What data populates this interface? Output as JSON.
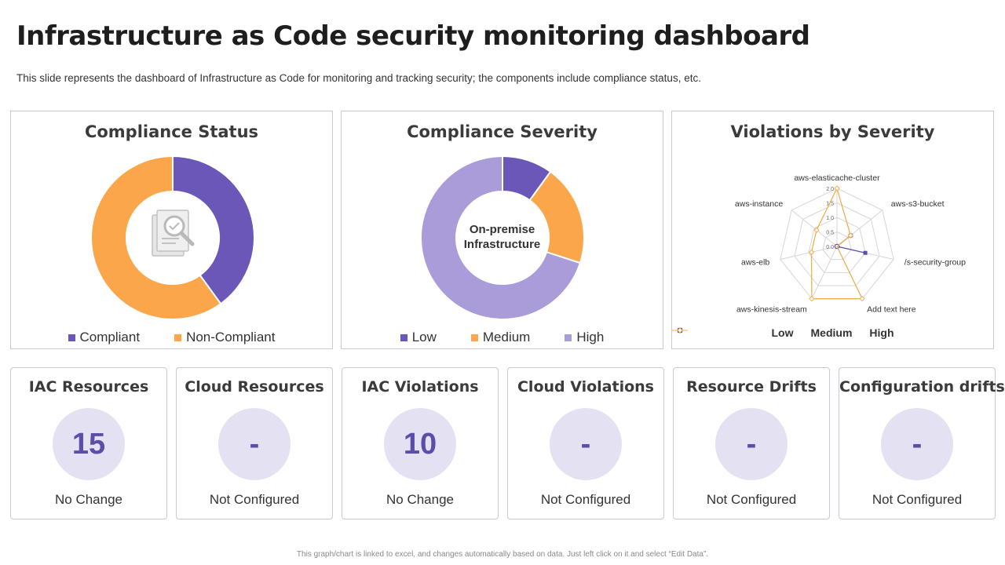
{
  "page": {
    "title": "Infrastructure as Code security monitoring dashboard",
    "subtitle": "This slide represents the dashboard of Infrastructure as Code for monitoring and tracking security; the components include compliance status, etc.",
    "footnote": "This graph/chart is linked to excel, and changes automatically based on data. Just left click on it and select “Edit Data”."
  },
  "chart_data": [
    {
      "type": "pie",
      "title": "Compliance Status",
      "categories": [
        "Compliant",
        "Non-Compliant"
      ],
      "values": [
        40,
        60
      ],
      "colors": [
        "#6a57b8",
        "#fba64a"
      ],
      "center_icon": "document-magnifier-shield-icon"
    },
    {
      "type": "pie",
      "title": "Compliance Severity",
      "categories": [
        "Low",
        "Medium",
        "High"
      ],
      "values": [
        10,
        20,
        70
      ],
      "colors": [
        "#6a57b8",
        "#fba64a",
        "#a99cd8"
      ],
      "center_text": [
        "On-premise",
        "Infrastructure"
      ]
    },
    {
      "type": "radar",
      "title": "Violations by Severity",
      "categories": [
        "aws-elasticache-cluster",
        "aws-s3-bucket",
        "/s-security-group",
        "Add text here",
        "aws-kinesis-stream",
        "aws-elb",
        "aws-instance"
      ],
      "ticks": [
        "2.0",
        "1.5",
        "1.0",
        "0.5",
        "0.0"
      ],
      "ylim": [
        0,
        2
      ],
      "series": [
        {
          "name": "Low",
          "values": [
            0,
            0,
            1,
            0,
            0,
            0,
            0
          ],
          "color": "#5b4ea8"
        },
        {
          "name": "Medium",
          "values": [
            0,
            0.6,
            0,
            0,
            0,
            0,
            0
          ],
          "color": "#b5524b"
        },
        {
          "name": "High",
          "values": [
            2,
            0.6,
            0,
            2,
            2,
            0.9,
            0.9
          ],
          "color": "#f0b04f"
        }
      ]
    }
  ],
  "cards": [
    {
      "title": "IAC Resources",
      "value": "15",
      "status": "No Change"
    },
    {
      "title": "Cloud Resources",
      "value": "-",
      "status": "Not Configured"
    },
    {
      "title": "IAC Violations",
      "value": "10",
      "status": "No Change"
    },
    {
      "title": "Cloud Violations",
      "value": "-",
      "status": "Not Configured"
    },
    {
      "title": "Resource Drifts",
      "value": "-",
      "status": "Not Configured"
    },
    {
      "title": "Configuration drifts",
      "value": "-",
      "status": "Not Configured"
    }
  ]
}
